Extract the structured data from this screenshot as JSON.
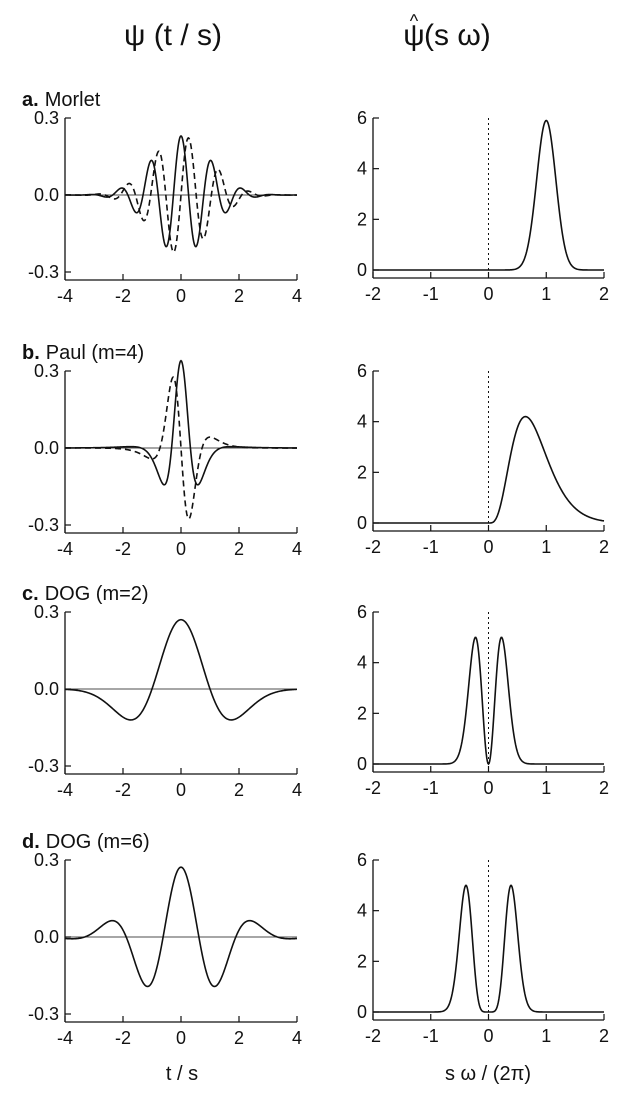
{
  "column_titles": {
    "left": "ψ (t / s)",
    "right_base": "ψ",
    "right_hat": "^",
    "right_arg": " (s ω)"
  },
  "bottom_labels": {
    "left": "t / s",
    "right": "s ω / (2π)"
  },
  "chart_data": [
    {
      "type": "line",
      "panel_letter": "a.",
      "panel_name": "Morlet",
      "time_domain": {
        "xlim": [
          -4,
          4
        ],
        "ylim": [
          -0.3,
          0.3
        ],
        "x_ticks": [
          "-4",
          "-2",
          "0",
          "2",
          "4"
        ],
        "y_ticks": [
          "0.3",
          "0.0",
          "-0.3"
        ],
        "zero_line": true,
        "series": [
          {
            "style": "solid",
            "function": "morlet_real"
          },
          {
            "style": "dashed",
            "function": "morlet_imag"
          }
        ]
      },
      "frequency_domain": {
        "xlim": [
          -2,
          2
        ],
        "ylim": [
          0,
          6
        ],
        "x_ticks": [
          "-2",
          "-1",
          "0",
          "1",
          "2"
        ],
        "y_ticks": [
          "6",
          "4",
          "2",
          "0"
        ],
        "dotted_zero": true,
        "series": [
          {
            "style": "solid",
            "function": "morlet_ft",
            "peak_x": 1.0,
            "peak_y": 5.9
          }
        ]
      }
    },
    {
      "type": "line",
      "panel_letter": "b.",
      "panel_name": "Paul (m=4)",
      "time_domain": {
        "xlim": [
          -4,
          4
        ],
        "ylim": [
          -0.3,
          0.3
        ],
        "x_ticks": [
          "-4",
          "-2",
          "0",
          "2",
          "4"
        ],
        "y_ticks": [
          "0.3",
          "0.0",
          "-0.3"
        ],
        "zero_line": true,
        "series": [
          {
            "style": "solid",
            "function": "paul_real"
          },
          {
            "style": "dashed",
            "function": "paul_imag"
          }
        ]
      },
      "frequency_domain": {
        "xlim": [
          -2,
          2
        ],
        "ylim": [
          0,
          6
        ],
        "x_ticks": [
          "-2",
          "-1",
          "0",
          "1",
          "2"
        ],
        "y_ticks": [
          "6",
          "4",
          "2",
          "0"
        ],
        "dotted_zero": true,
        "series": [
          {
            "style": "solid",
            "function": "paul_ft",
            "peak_x": 0.64,
            "peak_y": 4.2
          }
        ]
      }
    },
    {
      "type": "line",
      "panel_letter": "c.",
      "panel_name": "DOG (m=2)",
      "time_domain": {
        "xlim": [
          -4,
          4
        ],
        "ylim": [
          -0.3,
          0.3
        ],
        "x_ticks": [
          "-4",
          "-2",
          "0",
          "2",
          "4"
        ],
        "y_ticks": [
          "0.3",
          "0.0",
          "-0.3"
        ],
        "zero_line": true,
        "series": [
          {
            "style": "solid",
            "function": "dog2"
          }
        ]
      },
      "frequency_domain": {
        "xlim": [
          -2,
          2
        ],
        "ylim": [
          0,
          6
        ],
        "x_ticks": [
          "-2",
          "-1",
          "0",
          "1",
          "2"
        ],
        "y_ticks": [
          "6",
          "4",
          "2",
          "0"
        ],
        "dotted_zero": true,
        "series": [
          {
            "style": "solid",
            "function": "dog2_ft",
            "peak_x": 0.22,
            "peak_y": 5.0
          }
        ]
      }
    },
    {
      "type": "line",
      "panel_letter": "d.",
      "panel_name": "DOG (m=6)",
      "time_domain": {
        "xlim": [
          -4,
          4
        ],
        "ylim": [
          -0.3,
          0.3
        ],
        "x_ticks": [
          "-4",
          "-2",
          "0",
          "2",
          "4"
        ],
        "y_ticks": [
          "0.3",
          "0.0",
          "-0.3"
        ],
        "zero_line": true,
        "series": [
          {
            "style": "solid",
            "function": "dog6"
          }
        ]
      },
      "frequency_domain": {
        "xlim": [
          -2,
          2
        ],
        "ylim": [
          0,
          6
        ],
        "x_ticks": [
          "-2",
          "-1",
          "0",
          "1",
          "2"
        ],
        "y_ticks": [
          "6",
          "4",
          "2",
          "0"
        ],
        "dotted_zero": true,
        "series": [
          {
            "style": "solid",
            "function": "dog6_ft",
            "peak_x": 0.39,
            "peak_y": 5.0
          }
        ]
      }
    }
  ]
}
